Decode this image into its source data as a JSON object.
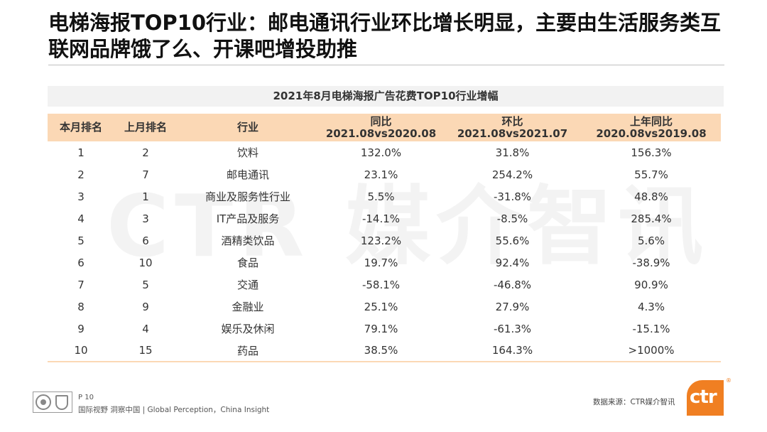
{
  "watermark": "CTR 媒介智讯",
  "title": "电梯海报TOP10行业：邮电通讯行业环比增长明显，主要由生活服务类互联网品牌饿了么、开课吧增投助推",
  "table": {
    "caption": "2021年8月电梯海报广告花费TOP10行业增幅",
    "headers": {
      "rank_current": "本月排名",
      "rank_previous": "上月排名",
      "industry": "行业",
      "yoy_title": "同比",
      "yoy_period": "2021.08vs2020.08",
      "mom_title": "环比",
      "mom_period": "2021.08vs2021.07",
      "prev_yoy_title": "上年同比",
      "prev_yoy_period": "2020.08vs2019.08"
    },
    "rows": [
      {
        "rank": "1",
        "prev_rank": "2",
        "industry": "饮料",
        "yoy": "132.0%",
        "mom": "31.8%",
        "prev_yoy": "156.3%"
      },
      {
        "rank": "2",
        "prev_rank": "7",
        "industry": "邮电通讯",
        "yoy": "23.1%",
        "mom": "254.2%",
        "prev_yoy": "55.7%"
      },
      {
        "rank": "3",
        "prev_rank": "1",
        "industry": "商业及服务性行业",
        "yoy": "5.5%",
        "mom": "-31.8%",
        "prev_yoy": "48.8%"
      },
      {
        "rank": "4",
        "prev_rank": "3",
        "industry": "IT产品及服务",
        "yoy": "-14.1%",
        "mom": "-8.5%",
        "prev_yoy": "285.4%"
      },
      {
        "rank": "5",
        "prev_rank": "6",
        "industry": "酒精类饮品",
        "yoy": "123.2%",
        "mom": "55.6%",
        "prev_yoy": "5.6%"
      },
      {
        "rank": "6",
        "prev_rank": "10",
        "industry": "食品",
        "yoy": "19.7%",
        "mom": "92.4%",
        "prev_yoy": "-38.9%"
      },
      {
        "rank": "7",
        "prev_rank": "5",
        "industry": "交通",
        "yoy": "-58.1%",
        "mom": "-46.8%",
        "prev_yoy": "90.9%"
      },
      {
        "rank": "8",
        "prev_rank": "9",
        "industry": "金融业",
        "yoy": "25.1%",
        "mom": "27.9%",
        "prev_yoy": "4.3%"
      },
      {
        "rank": "9",
        "prev_rank": "4",
        "industry": "娱乐及休闲",
        "yoy": "79.1%",
        "mom": "-61.3%",
        "prev_yoy": "-15.1%"
      },
      {
        "rank": "10",
        "prev_rank": "15",
        "industry": "药品",
        "yoy": "38.5%",
        "mom": "164.3%",
        "prev_yoy": ">1000%"
      }
    ]
  },
  "footer": {
    "page": "P 10",
    "slogan": "国际视野  洞察中国 | Global Perception，China Insight",
    "source": "数据来源：CTR媒介智讯",
    "logo_text": "ctr",
    "logo_mark": "®",
    "brand_color": "#f07f22",
    "header_color": "#fbd8b5",
    "cert_icons": [
      "certification-seal-icon",
      "certification-shield-icon"
    ]
  }
}
